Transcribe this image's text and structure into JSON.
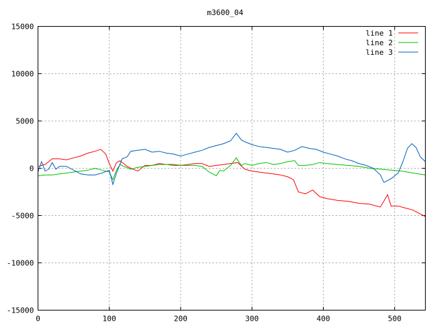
{
  "chart_data": {
    "type": "line",
    "title": "m3600_04",
    "xlabel": "",
    "ylabel": "",
    "xlim": [
      0,
      543
    ],
    "ylim": [
      -15000,
      15000
    ],
    "x_ticks": [
      0,
      100,
      200,
      300,
      400,
      500
    ],
    "y_ticks": [
      -15000,
      -10000,
      -5000,
      0,
      5000,
      10000,
      15000
    ],
    "grid": true,
    "legend_position": "top-right",
    "series": [
      {
        "name": "line 1",
        "color": "#ff0000",
        "points": [
          [
            0,
            200
          ],
          [
            10,
            400
          ],
          [
            20,
            1000
          ],
          [
            30,
            1000
          ],
          [
            40,
            900
          ],
          [
            50,
            1100
          ],
          [
            60,
            1300
          ],
          [
            70,
            1600
          ],
          [
            80,
            1800
          ],
          [
            88,
            2000
          ],
          [
            95,
            1500
          ],
          [
            100,
            500
          ],
          [
            105,
            -300
          ],
          [
            110,
            600
          ],
          [
            115,
            800
          ],
          [
            120,
            500
          ],
          [
            125,
            200
          ],
          [
            130,
            0
          ],
          [
            140,
            -300
          ],
          [
            150,
            300
          ],
          [
            160,
            300
          ],
          [
            170,
            500
          ],
          [
            180,
            400
          ],
          [
            190,
            400
          ],
          [
            200,
            300
          ],
          [
            210,
            400
          ],
          [
            220,
            500
          ],
          [
            230,
            500
          ],
          [
            240,
            200
          ],
          [
            250,
            300
          ],
          [
            260,
            400
          ],
          [
            270,
            500
          ],
          [
            280,
            600
          ],
          [
            290,
            -100
          ],
          [
            300,
            -300
          ],
          [
            310,
            -400
          ],
          [
            320,
            -500
          ],
          [
            330,
            -600
          ],
          [
            340,
            -700
          ],
          [
            350,
            -900
          ],
          [
            358,
            -1200
          ],
          [
            365,
            -2500
          ],
          [
            375,
            -2700
          ],
          [
            385,
            -2300
          ],
          [
            395,
            -3000
          ],
          [
            405,
            -3200
          ],
          [
            420,
            -3400
          ],
          [
            435,
            -3500
          ],
          [
            450,
            -3700
          ],
          [
            465,
            -3800
          ],
          [
            480,
            -4100
          ],
          [
            490,
            -2800
          ],
          [
            495,
            -4000
          ],
          [
            505,
            -4000
          ],
          [
            515,
            -4200
          ],
          [
            525,
            -4400
          ],
          [
            535,
            -4800
          ],
          [
            543,
            -5100
          ]
        ]
      },
      {
        "name": "line 2",
        "color": "#00c000",
        "points": [
          [
            0,
            -800
          ],
          [
            10,
            -700
          ],
          [
            20,
            -700
          ],
          [
            30,
            -600
          ],
          [
            40,
            -500
          ],
          [
            50,
            -400
          ],
          [
            60,
            -300
          ],
          [
            70,
            -200
          ],
          [
            80,
            0
          ],
          [
            90,
            -200
          ],
          [
            100,
            -400
          ],
          [
            105,
            -1200
          ],
          [
            110,
            -200
          ],
          [
            115,
            400
          ],
          [
            120,
            200
          ],
          [
            130,
            -100
          ],
          [
            140,
            100
          ],
          [
            150,
            200
          ],
          [
            160,
            300
          ],
          [
            170,
            400
          ],
          [
            180,
            400
          ],
          [
            190,
            300
          ],
          [
            200,
            300
          ],
          [
            210,
            300
          ],
          [
            220,
            300
          ],
          [
            230,
            200
          ],
          [
            240,
            -400
          ],
          [
            250,
            -800
          ],
          [
            255,
            -200
          ],
          [
            260,
            -300
          ],
          [
            270,
            300
          ],
          [
            278,
            1100
          ],
          [
            285,
            300
          ],
          [
            290,
            500
          ],
          [
            300,
            300
          ],
          [
            310,
            500
          ],
          [
            320,
            600
          ],
          [
            330,
            400
          ],
          [
            340,
            500
          ],
          [
            350,
            700
          ],
          [
            360,
            800
          ],
          [
            365,
            300
          ],
          [
            375,
            300
          ],
          [
            385,
            400
          ],
          [
            395,
            600
          ],
          [
            405,
            500
          ],
          [
            420,
            400
          ],
          [
            435,
            300
          ],
          [
            450,
            200
          ],
          [
            465,
            0
          ],
          [
            480,
            -100
          ],
          [
            495,
            -200
          ],
          [
            510,
            -300
          ],
          [
            525,
            -500
          ],
          [
            543,
            -700
          ]
        ]
      },
      {
        "name": "line 3",
        "color": "#0060c0",
        "points": [
          [
            0,
            -400
          ],
          [
            5,
            700
          ],
          [
            10,
            -300
          ],
          [
            15,
            -100
          ],
          [
            20,
            600
          ],
          [
            25,
            -100
          ],
          [
            30,
            200
          ],
          [
            40,
            200
          ],
          [
            50,
            -200
          ],
          [
            60,
            -600
          ],
          [
            70,
            -700
          ],
          [
            80,
            -700
          ],
          [
            90,
            -500
          ],
          [
            100,
            -200
          ],
          [
            105,
            -1700
          ],
          [
            110,
            -500
          ],
          [
            118,
            1000
          ],
          [
            125,
            1200
          ],
          [
            130,
            1800
          ],
          [
            140,
            1900
          ],
          [
            150,
            2000
          ],
          [
            160,
            1700
          ],
          [
            170,
            1800
          ],
          [
            180,
            1600
          ],
          [
            190,
            1500
          ],
          [
            200,
            1300
          ],
          [
            210,
            1500
          ],
          [
            220,
            1700
          ],
          [
            230,
            1900
          ],
          [
            240,
            2200
          ],
          [
            250,
            2400
          ],
          [
            260,
            2600
          ],
          [
            270,
            2900
          ],
          [
            278,
            3700
          ],
          [
            285,
            3000
          ],
          [
            290,
            2800
          ],
          [
            300,
            2500
          ],
          [
            310,
            2300
          ],
          [
            320,
            2200
          ],
          [
            330,
            2100
          ],
          [
            340,
            2000
          ],
          [
            350,
            1700
          ],
          [
            360,
            1900
          ],
          [
            370,
            2300
          ],
          [
            380,
            2100
          ],
          [
            390,
            2000
          ],
          [
            400,
            1700
          ],
          [
            410,
            1500
          ],
          [
            420,
            1300
          ],
          [
            430,
            1000
          ],
          [
            440,
            800
          ],
          [
            450,
            500
          ],
          [
            460,
            300
          ],
          [
            470,
            0
          ],
          [
            480,
            -700
          ],
          [
            485,
            -1500
          ],
          [
            495,
            -1100
          ],
          [
            505,
            -500
          ],
          [
            512,
            800
          ],
          [
            518,
            2100
          ],
          [
            524,
            2600
          ],
          [
            530,
            2200
          ],
          [
            536,
            1200
          ],
          [
            543,
            700
          ]
        ]
      }
    ]
  }
}
